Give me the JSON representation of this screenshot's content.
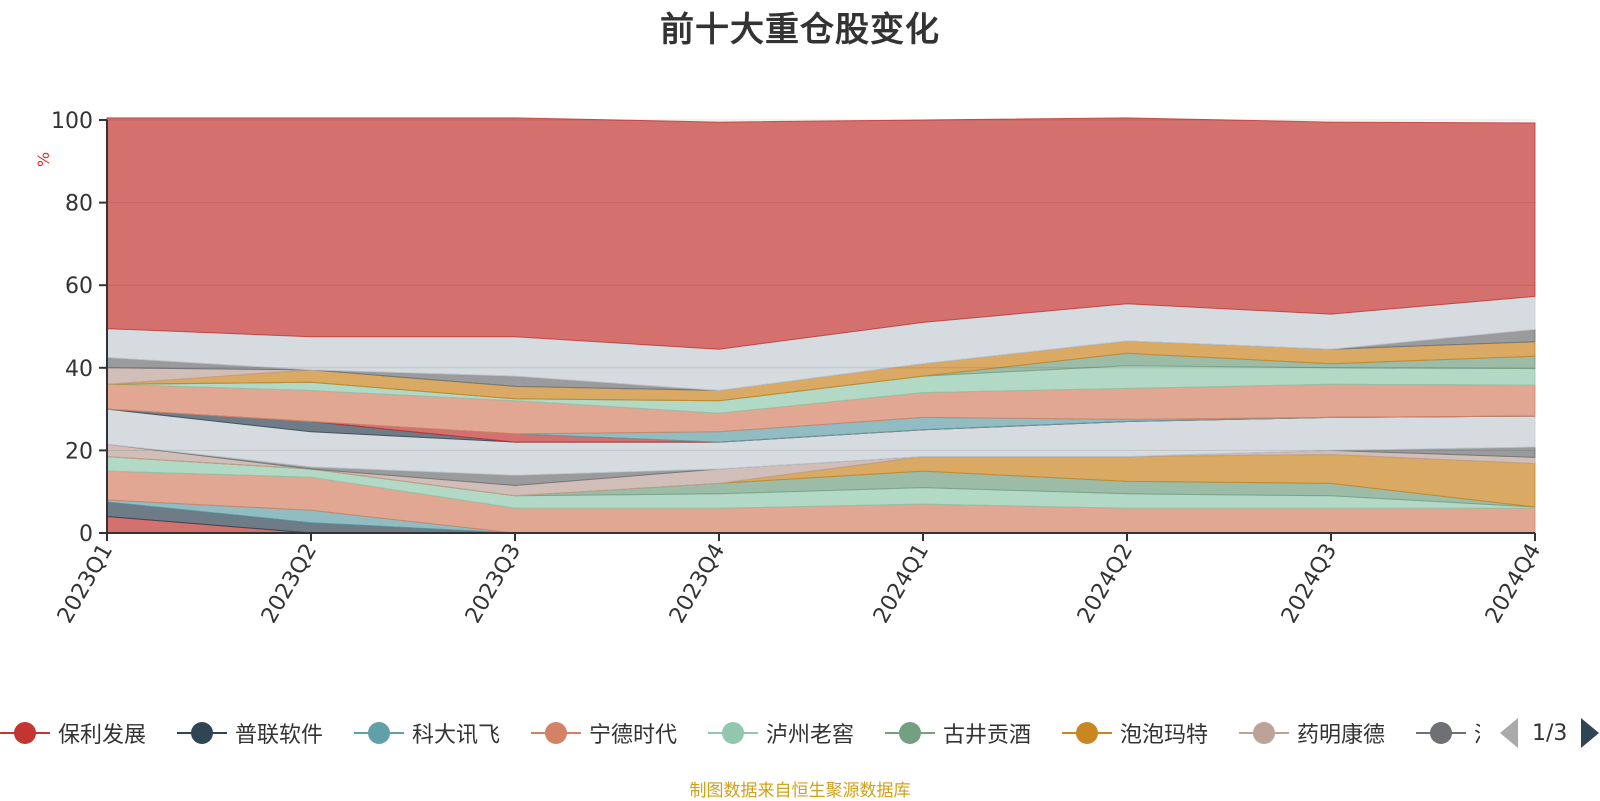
{
  "chart_data": {
    "type": "area",
    "title": "前十大重仓股变化",
    "y_unit_label": "%",
    "ylim": [
      0,
      100
    ],
    "y_ticks": [
      "0",
      "20",
      "40",
      "60",
      "80",
      "100"
    ],
    "categories": [
      "2023Q1",
      "2023Q2",
      "2023Q3",
      "2023Q4",
      "2024Q1",
      "2024Q2",
      "2024Q3",
      "2024Q4"
    ],
    "stacked": true,
    "grid": true,
    "series": [
      {
        "name": "保利发展",
        "color": "#c23531",
        "values": [
          4,
          0,
          0,
          0,
          0,
          0,
          0,
          0
        ]
      },
      {
        "name": "普联软件",
        "color": "#2f4554",
        "values": [
          3.5,
          2.5,
          0,
          0,
          0,
          0,
          0,
          0
        ]
      },
      {
        "name": "科大讯飞",
        "color": "#61a0a8",
        "values": [
          0.5,
          3,
          0,
          0,
          0,
          0,
          0,
          0
        ]
      },
      {
        "name": "宁德时代",
        "color": "#d48265",
        "values": [
          7,
          8,
          6,
          6,
          7,
          6,
          6,
          6
        ]
      },
      {
        "name": "泸州老窖",
        "color": "#91c7ae",
        "values": [
          3.5,
          2,
          3,
          3.5,
          4,
          3.5,
          3,
          0.3
        ]
      },
      {
        "name": "古井贡酒",
        "color": "#749f83",
        "values": [
          0,
          0,
          0,
          2.5,
          4,
          3,
          3,
          0
        ]
      },
      {
        "name": "泡泡玛特",
        "color": "#ca8622",
        "values": [
          0,
          0,
          0,
          0,
          3.5,
          6,
          7,
          10.5
        ]
      },
      {
        "name": "药明康德",
        "color": "#bda29a",
        "values": [
          3,
          0,
          2.5,
          3.5,
          0,
          0,
          1,
          1.5
        ]
      },
      {
        "name": "",
        "color": "#6e7074",
        "values": [
          0,
          0.5,
          2.5,
          0,
          0,
          0,
          0,
          2.5
        ]
      },
      {
        "name": "",
        "color": "#c4ccd3",
        "values": [
          8.5,
          8.5,
          8,
          6.5,
          6.5,
          8.5,
          8,
          7.5
        ]
      },
      {
        "name": "",
        "color": "#2f4554",
        "values": [
          0,
          2.5,
          0,
          0,
          0,
          0,
          0,
          0
        ]
      },
      {
        "name": "",
        "color": "#c23531",
        "values": [
          0,
          0,
          2,
          0,
          0,
          0,
          0,
          0
        ]
      },
      {
        "name": "",
        "color": "#61a0a8",
        "values": [
          0,
          0,
          0,
          2.5,
          3,
          0.5,
          0,
          0
        ]
      },
      {
        "name": "",
        "color": "#d48265",
        "values": [
          6,
          7.5,
          8,
          4.5,
          6,
          7.5,
          8,
          7.5
        ]
      },
      {
        "name": "",
        "color": "#91c7ae",
        "values": [
          0,
          2,
          0.5,
          3,
          4,
          5.5,
          4,
          4
        ]
      },
      {
        "name": "",
        "color": "#749f83",
        "values": [
          0,
          0,
          0,
          0,
          0,
          3,
          1,
          3
        ]
      },
      {
        "name": "",
        "color": "#ca8622",
        "values": [
          0,
          3,
          3,
          2.5,
          3,
          3,
          3.5,
          3.5
        ]
      },
      {
        "name": "",
        "color": "#bda29a",
        "values": [
          4,
          0,
          0,
          0,
          0,
          0,
          0,
          0
        ]
      },
      {
        "name": "",
        "color": "#6e7074",
        "values": [
          2.5,
          0,
          2.5,
          0,
          0,
          0,
          0,
          3
        ]
      },
      {
        "name": "",
        "color": "#c4ccd3",
        "values": [
          7,
          8,
          9.5,
          10,
          10,
          9,
          8.5,
          8
        ]
      },
      {
        "name": "",
        "color": "#c23531",
        "values": [
          51,
          53,
          53,
          55,
          49,
          45,
          46.5,
          42
        ]
      }
    ]
  },
  "legend": {
    "items": [
      {
        "label": "保利发展",
        "color": "#c23531"
      },
      {
        "label": "普联软件",
        "color": "#2f4554"
      },
      {
        "label": "科大讯飞",
        "color": "#61a0a8"
      },
      {
        "label": "宁德时代",
        "color": "#d48265"
      },
      {
        "label": "泸州老窖",
        "color": "#91c7ae"
      },
      {
        "label": "古井贡酒",
        "color": "#749f83"
      },
      {
        "label": "泡泡玛特",
        "color": "#ca8622"
      },
      {
        "label": "药明康德",
        "color": "#bda29a"
      },
      {
        "label": "泸",
        "color": "#6e7074"
      }
    ],
    "pager_text": "1/3"
  },
  "source_note": "制图数据来自恒生聚源数据库"
}
